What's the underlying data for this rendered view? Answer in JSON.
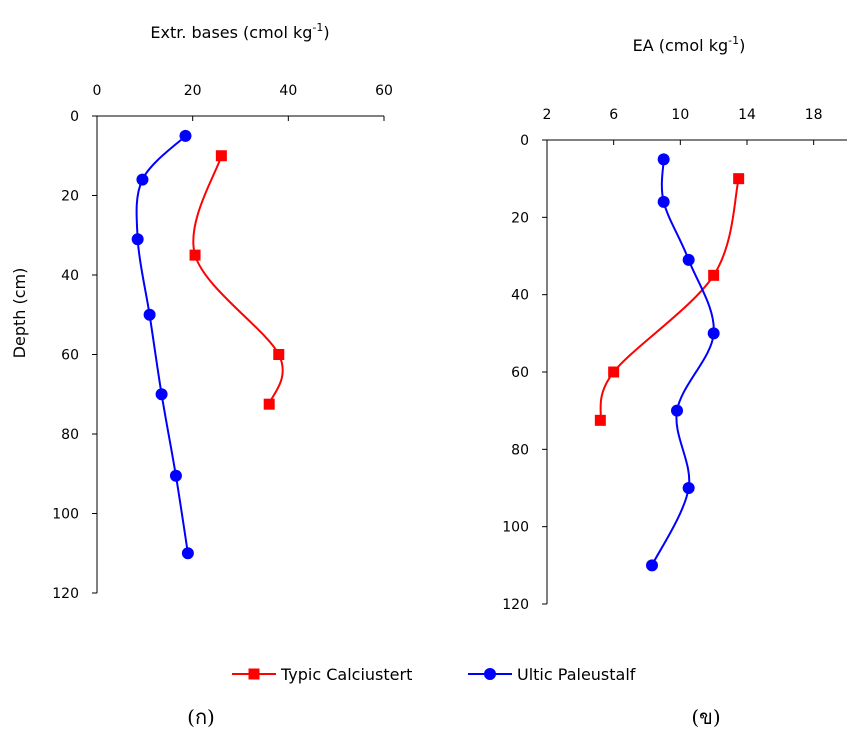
{
  "chart_data": [
    {
      "type": "line",
      "panel": "(ก)",
      "title_main": "Extr. bases  (cmol kg",
      "title_sup": "-1",
      "title_end": ")",
      "ylabel": "Depth (cm)",
      "x_axis_position": "top",
      "y_inverted": true,
      "xlim": [
        0,
        60
      ],
      "ylim": [
        0,
        120
      ],
      "xticks": [
        0,
        20,
        40,
        60
      ],
      "yticks": [
        0,
        20,
        40,
        60,
        80,
        100,
        120
      ],
      "series": [
        {
          "name": "Typic Calciustert",
          "color": "#ff0000",
          "marker": "square",
          "x": [
            26,
            20.5,
            38,
            36
          ],
          "y": [
            10,
            35,
            60,
            72.5
          ]
        },
        {
          "name": "Ultic Paleustalf",
          "color": "#0000ff",
          "marker": "circle",
          "x": [
            18.5,
            9.5,
            8.5,
            11,
            13.5,
            16.5,
            19
          ],
          "y": [
            5,
            16,
            31,
            50,
            70,
            90.5,
            110
          ]
        }
      ]
    },
    {
      "type": "line",
      "panel": "(ข)",
      "title_main": "EA (cmol kg",
      "title_sup": "-1",
      "title_end": ")",
      "ylabel": "",
      "x_axis_position": "top",
      "y_inverted": true,
      "xlim": [
        2,
        20
      ],
      "ylim": [
        0,
        120
      ],
      "xticks": [
        2,
        6,
        10,
        14,
        18
      ],
      "yticks": [
        0,
        20,
        40,
        60,
        80,
        100,
        120
      ],
      "series": [
        {
          "name": "Typic Calciustert",
          "color": "#ff0000",
          "marker": "square",
          "x": [
            13.5,
            12,
            6,
            5.2
          ],
          "y": [
            10,
            35,
            60,
            72.5
          ]
        },
        {
          "name": "Ultic Paleustalf",
          "color": "#0000ff",
          "marker": "circle",
          "x": [
            9,
            9,
            10.5,
            12,
            9.8,
            10.5,
            8.3
          ],
          "y": [
            5,
            16,
            31,
            50,
            70,
            90,
            110
          ]
        }
      ]
    }
  ],
  "legend": {
    "placement": "bottom-center",
    "items": [
      {
        "label": "Typic Calciustert",
        "color": "#ff0000",
        "marker": "square"
      },
      {
        "label": "Ultic Paleustalf",
        "color": "#0000ff",
        "marker": "circle"
      }
    ]
  }
}
